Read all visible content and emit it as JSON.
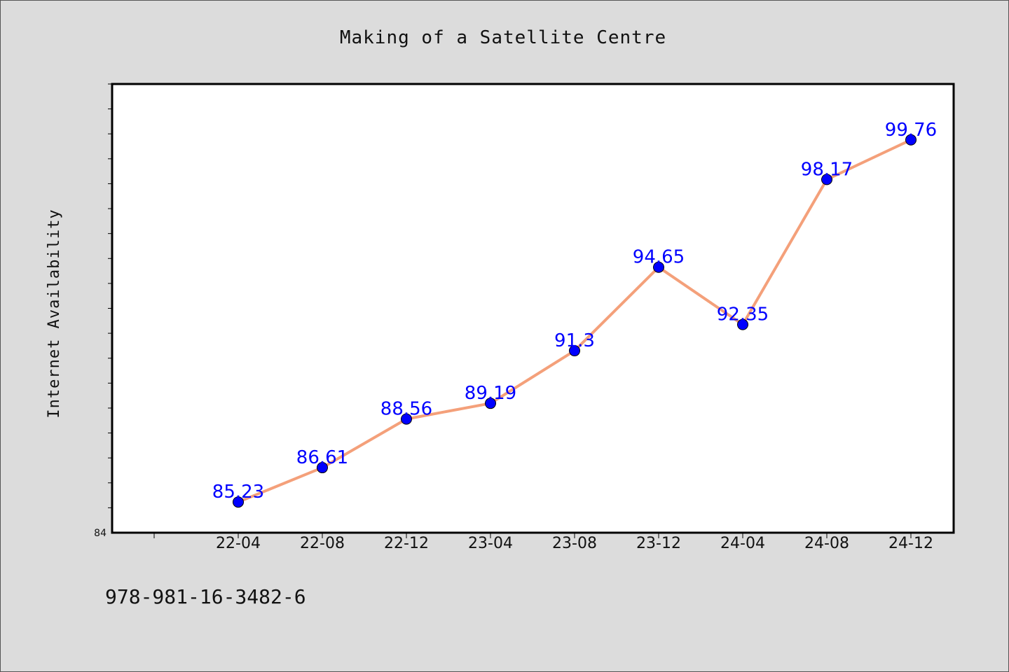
{
  "chart_data": {
    "type": "line",
    "title": "Making of a Satellite Centre",
    "xlabel": "",
    "ylabel": "Internet Availability",
    "categories": [
      "22-04",
      "22-08",
      "22-12",
      "23-04",
      "23-08",
      "23-12",
      "24-04",
      "24-08",
      "24-12"
    ],
    "series": [
      {
        "values": [
          85.23,
          86.61,
          88.56,
          89.19,
          91.3,
          94.65,
          92.35,
          98.17,
          99.76
        ]
      }
    ],
    "ylim": [
      84,
      102
    ],
    "y_tick_labels": [
      "84"
    ],
    "grid": false,
    "line_color": "#f4a07a",
    "marker_color": "#0000ff",
    "label_color": "#0000ff"
  },
  "footer": {
    "isbn": "978-981-16-3482-6"
  }
}
